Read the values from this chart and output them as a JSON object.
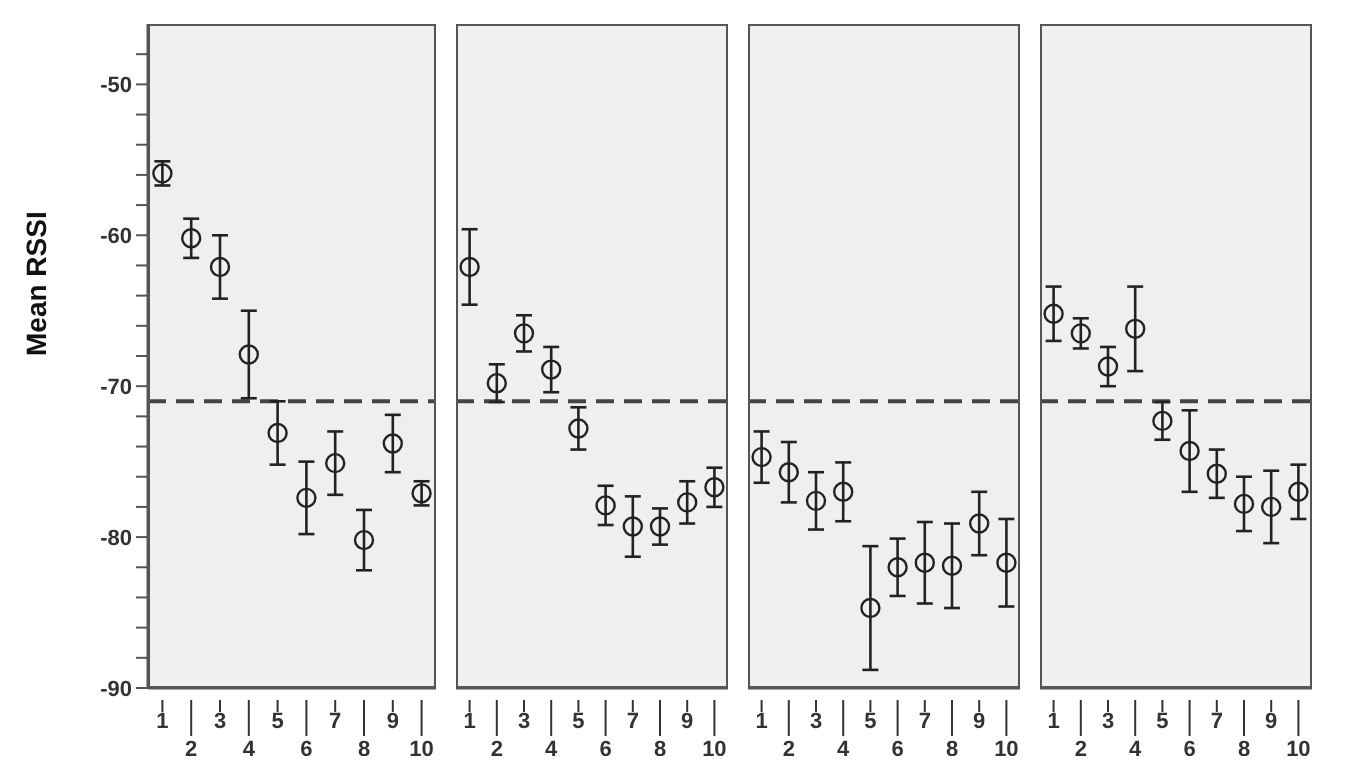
{
  "chart_data": [
    {
      "type": "scatter",
      "ylabel": "Mean RSSI",
      "categories": [
        "1",
        "2",
        "3",
        "4",
        "5",
        "6",
        "7",
        "8",
        "9",
        "10"
      ],
      "marker": "circle",
      "color": "#222222",
      "values": [
        -55.9,
        -60.2,
        -62.1,
        -67.9,
        -73.1,
        -77.4,
        -75.1,
        -80.2,
        -73.8,
        -77.1
      ],
      "errors": [
        0.8,
        1.3,
        2.1,
        2.9,
        2.1,
        2.4,
        2.1,
        2.0,
        1.9,
        0.8
      ],
      "ylim": [
        -90,
        -46
      ],
      "yticks": [
        -90,
        {
          "value": -88,
          "label": null
        },
        {
          "value": -86,
          "label": null
        },
        {
          "value": -84,
          "label": null
        },
        {
          "value": -82,
          "label": null
        },
        -80,
        {
          "value": -78,
          "label": null
        },
        {
          "value": -76,
          "label": null
        },
        {
          "value": -74,
          "label": null
        },
        {
          "value": -72,
          "label": null
        },
        -70,
        {
          "value": -68,
          "label": null
        },
        {
          "value": -66,
          "label": null
        },
        {
          "value": -64,
          "label": null
        },
        {
          "value": -62,
          "label": null
        },
        -60,
        {
          "value": -58,
          "label": null
        },
        {
          "value": -56,
          "label": null
        },
        {
          "value": -54,
          "label": null
        },
        {
          "value": -52,
          "label": null
        },
        -50,
        {
          "value": -48,
          "label": null
        }
      ],
      "ref_lines": [
        {
          "axis": "y",
          "value": -71,
          "line_style": "dashed"
        }
      ],
      "grid": false
    },
    {
      "type": "scatter",
      "categories": [
        "1",
        "2",
        "3",
        "4",
        "5",
        "6",
        "7",
        "8",
        "9",
        "10"
      ],
      "marker": "circle",
      "color": "#222222",
      "values": [
        -62.1,
        -69.8,
        -66.5,
        -68.9,
        -72.8,
        -77.9,
        -79.3,
        -79.3,
        -77.7,
        -76.7
      ],
      "errors": [
        2.5,
        1.25,
        1.2,
        1.5,
        1.4,
        1.3,
        2.0,
        1.2,
        1.4,
        1.3
      ],
      "ylim": [
        -90,
        -46
      ],
      "tick_labels": "x",
      "ref_lines": [
        {
          "axis": "y",
          "value": -71,
          "line_style": "dashed"
        }
      ],
      "grid": false
    },
    {
      "type": "scatter",
      "categories": [
        "1",
        "2",
        "3",
        "4",
        "5",
        "6",
        "7",
        "8",
        "9",
        "10"
      ],
      "marker": "circle",
      "color": "#222222",
      "values": [
        -74.7,
        -75.7,
        -77.6,
        -77.0,
        -84.7,
        -82.0,
        -81.7,
        -81.9,
        -79.1,
        -81.7
      ],
      "errors": [
        1.7,
        2.0,
        1.9,
        1.95,
        4.1,
        1.9,
        2.7,
        2.8,
        2.1,
        2.9
      ],
      "ylim": [
        -90,
        -46
      ],
      "tick_labels": "x",
      "ref_lines": [
        {
          "axis": "y",
          "value": -71,
          "line_style": "dashed"
        }
      ],
      "grid": false
    },
    {
      "type": "scatter",
      "categories": [
        "1",
        "2",
        "3",
        "4",
        "5",
        "6",
        "7",
        "8",
        "9",
        "10"
      ],
      "marker": "circle",
      "color": "#222222",
      "values": [
        -65.2,
        -66.5,
        -68.7,
        -66.2,
        -72.3,
        -74.3,
        -75.8,
        -77.8,
        -78.0,
        -77.0
      ],
      "errors": [
        1.8,
        1.0,
        1.3,
        2.8,
        1.25,
        2.7,
        1.6,
        1.8,
        2.4,
        1.8
      ],
      "ylim": [
        -90,
        -46
      ],
      "tick_labels": "x",
      "ref_lines": [
        {
          "axis": "y",
          "value": -71,
          "line_style": "dashed"
        }
      ],
      "grid": false
    }
  ]
}
